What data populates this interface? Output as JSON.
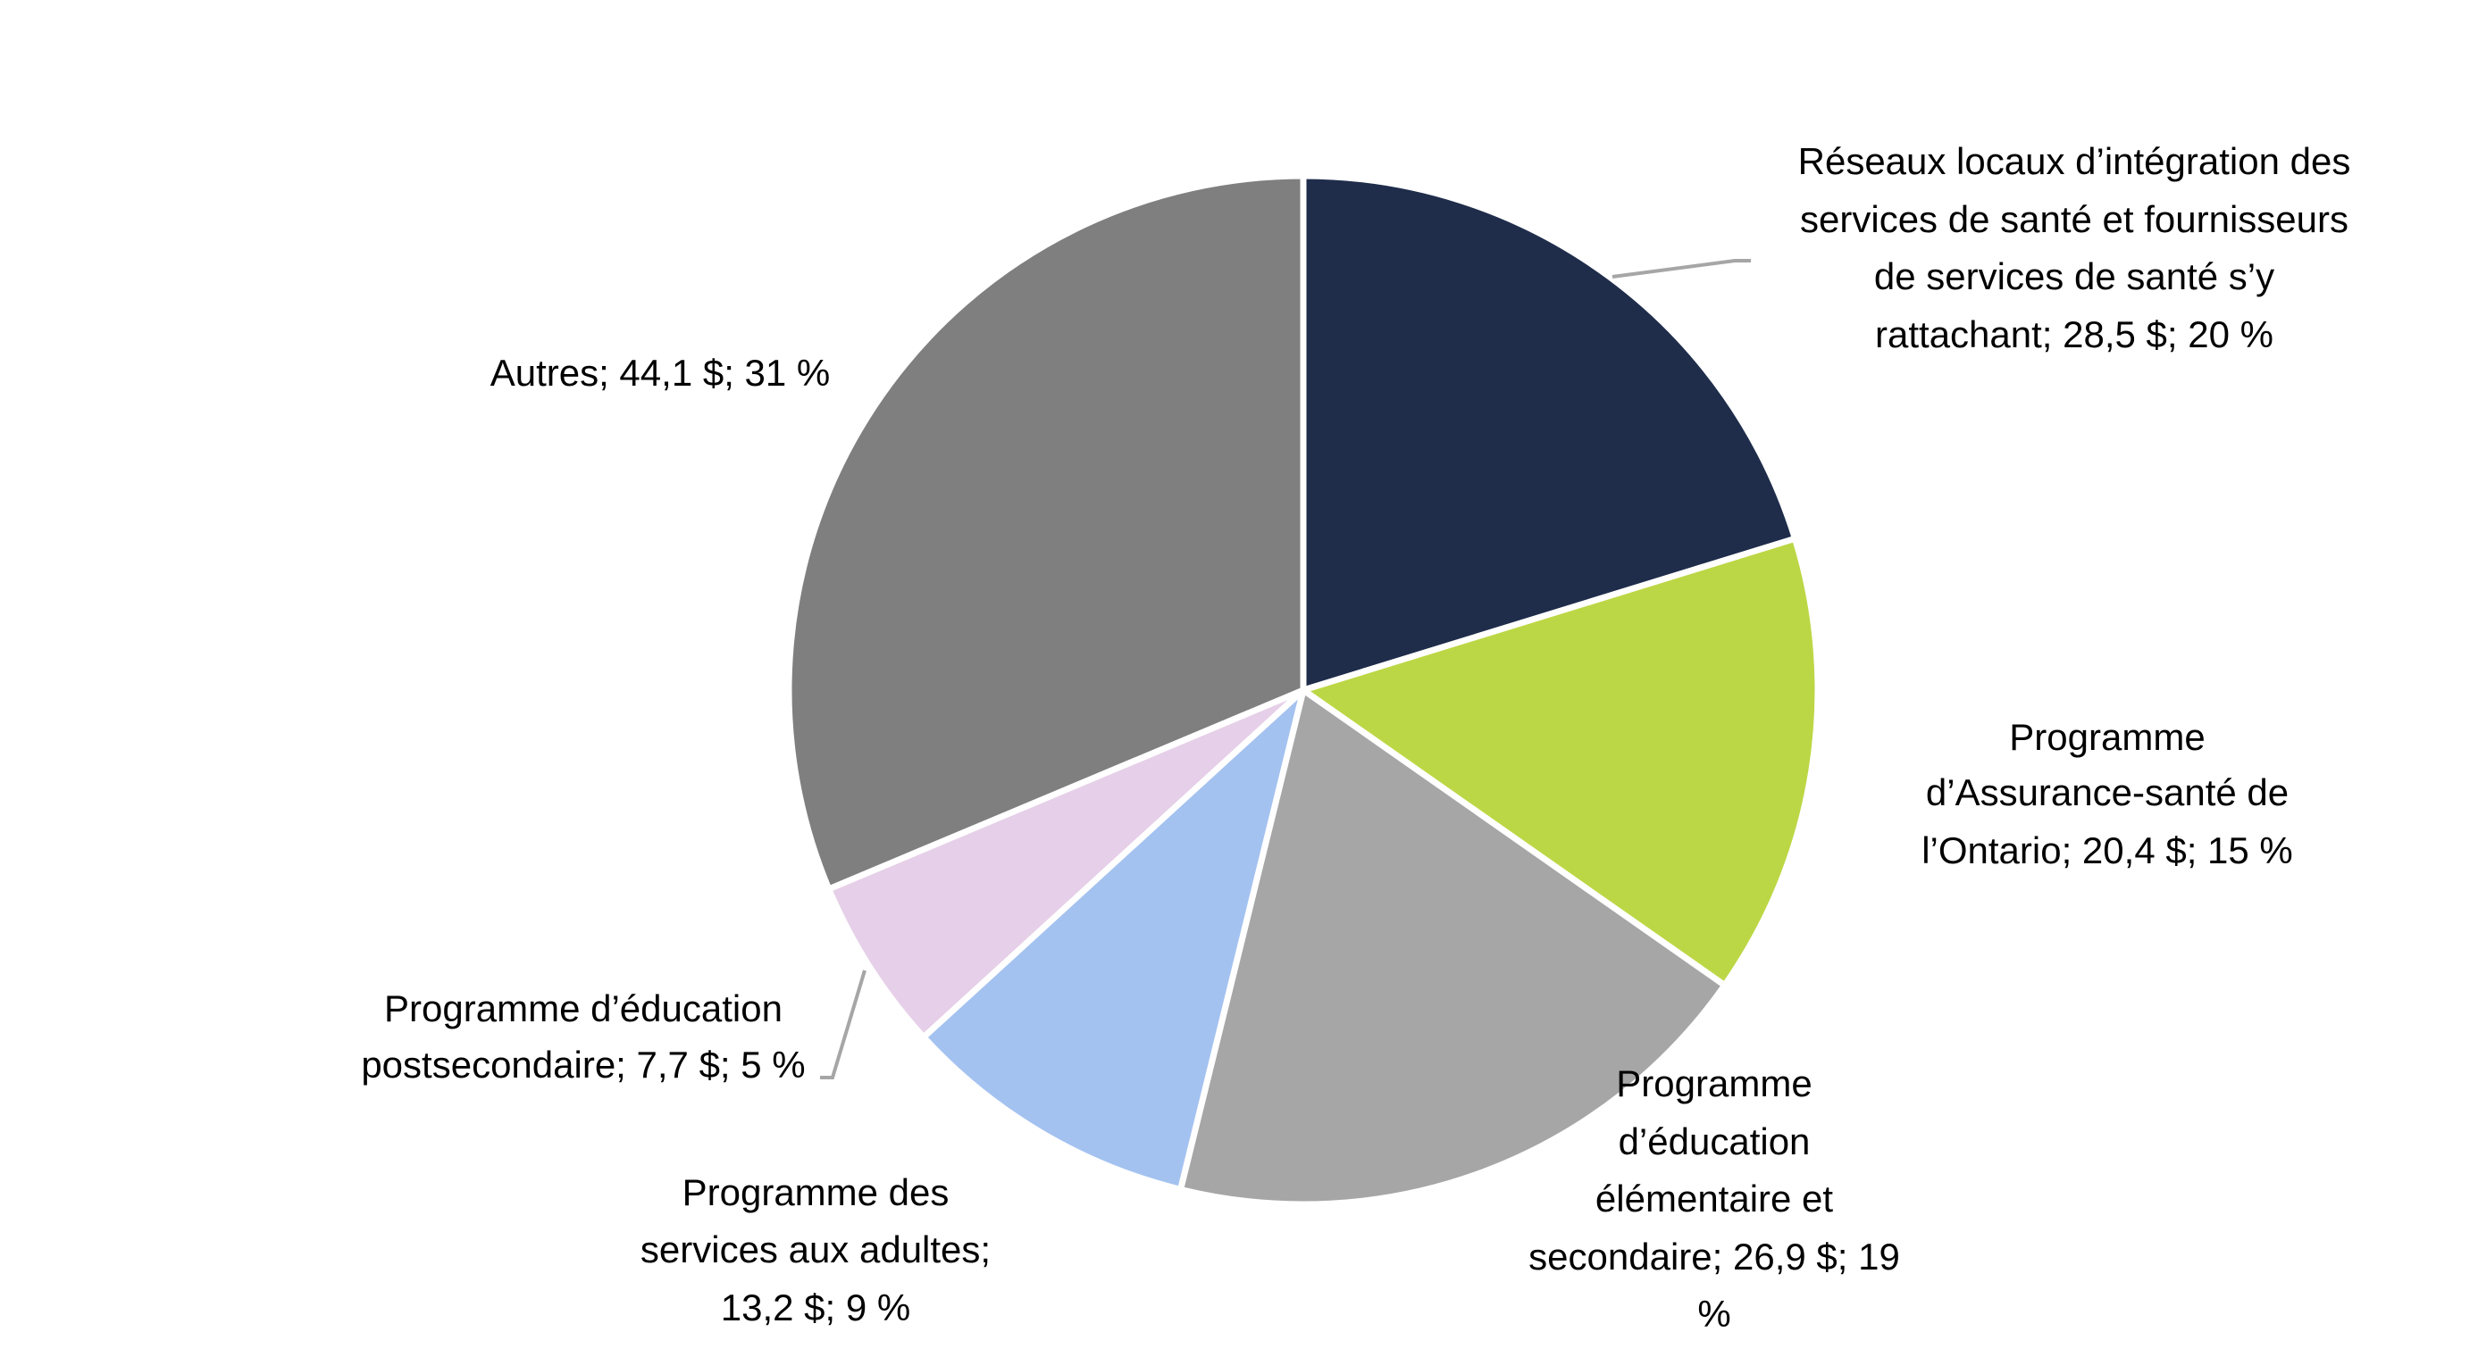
{
  "chart_data": {
    "type": "pie",
    "title": "",
    "start_angle_deg": 0,
    "direction": "clockwise",
    "slices": [
      {
        "name": "Réseaux locaux d’intégration des services de santé et fournisseurs de services de santé s’y rattachant",
        "value": 28.5,
        "percent": 20,
        "color": "#1f2d4b",
        "label_lines": [
          "Réseaux locaux d’intégration des",
          "services de santé et fournisseurs",
          "de services de santé s’y",
          "rattachant; 28,5 $; 20 %"
        ]
      },
      {
        "name": "Programme d’Assurance-santé de l’Ontario",
        "value": 20.4,
        "percent": 15,
        "color": "#bcd745",
        "label_lines": [
          "Programme",
          "d’Assurance-santé de",
          "l’Ontario; 20,4 $; 15 %"
        ]
      },
      {
        "name": "Programme d’éducation élémentaire et secondaire",
        "value": 26.9,
        "percent": 19,
        "color": "#a6a6a6",
        "label_lines": [
          "Programme",
          "d’éducation",
          "élémentaire et",
          "secondaire; 26,9 $; 19",
          "%"
        ]
      },
      {
        "name": "Programme des services aux adultes",
        "value": 13.2,
        "percent": 9,
        "color": "#a4c2f0",
        "label_lines": [
          "Programme des",
          "services aux adultes;",
          "13,2 $; 9 %"
        ]
      },
      {
        "name": "Programme d’éducation postsecondaire",
        "value": 7.7,
        "percent": 5,
        "color": "#e6cfe8",
        "label_lines": [
          "Programme d’éducation",
          "postsecondaire; 7,7 $; 5 %"
        ]
      },
      {
        "name": "Autres",
        "value": 44.1,
        "percent": 31,
        "color": "#7f7f7f",
        "label_lines": [
          "Autres; 44,1 $; 31 %"
        ]
      }
    ]
  }
}
